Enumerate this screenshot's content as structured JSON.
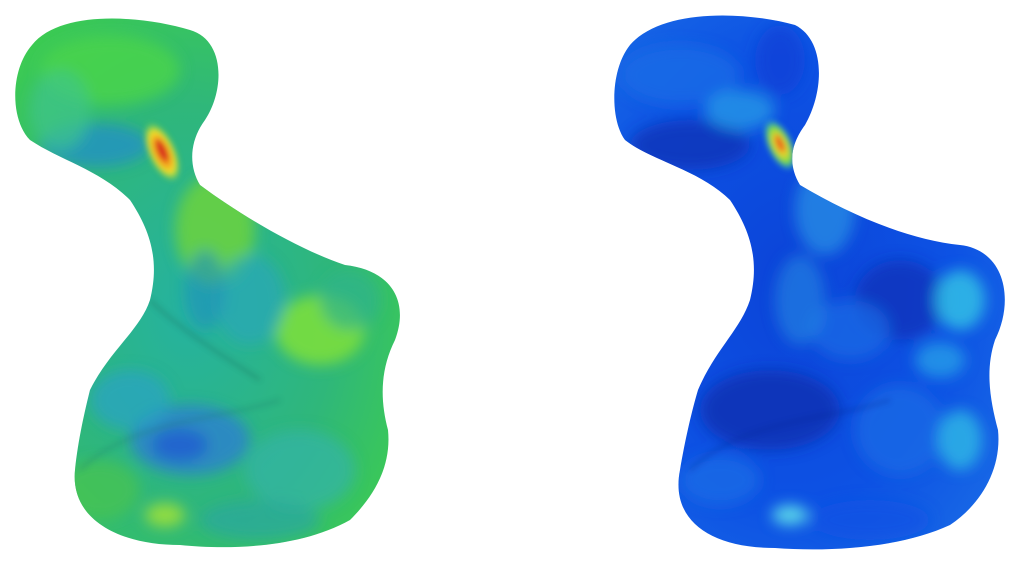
{
  "figure": {
    "panels": [
      {
        "id": "left",
        "description_name": "stress-contour-model-a",
        "dominant_palette": [
          "#2fb07a",
          "#36c25a",
          "#7fe03a",
          "#22a4c0",
          "#2a7fcf",
          "#1f5fd0"
        ],
        "hotspot_colors": [
          "#f7e62a",
          "#f29a1e",
          "#e23a16"
        ]
      },
      {
        "id": "right",
        "description_name": "stress-contour-model-b",
        "dominant_palette": [
          "#0b3fd6",
          "#0d52e4",
          "#1a6ce6",
          "#29a8e8",
          "#34c6e6"
        ],
        "hotspot_colors": [
          "#6fe04a",
          "#f0d12a",
          "#e8541a"
        ]
      }
    ]
  }
}
